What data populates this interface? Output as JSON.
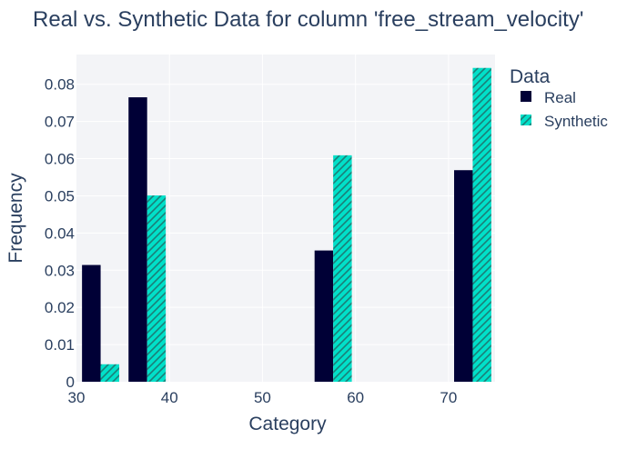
{
  "chart_data": {
    "type": "bar",
    "title": "Real vs. Synthetic Data for column 'free_stream_velocity'",
    "xlabel": "Category",
    "ylabel": "Frequency",
    "xlim": [
      30,
      75
    ],
    "ylim": [
      0,
      0.088
    ],
    "xticks": [
      30,
      40,
      50,
      60,
      70
    ],
    "yticks": [
      0,
      0.01,
      0.02,
      0.03,
      0.04,
      0.05,
      0.06,
      0.07,
      0.08
    ],
    "bar_width": 2,
    "grid": true,
    "legend": {
      "title": "Data",
      "placement": "right"
    },
    "series": [
      {
        "name": "Real",
        "color": "#000036",
        "pattern": "solid",
        "x": [
          31.6,
          36.6,
          56.6,
          71.6
        ],
        "values": [
          0.0314,
          0.0765,
          0.0353,
          0.0569
        ]
      },
      {
        "name": "Synthetic",
        "color": "#01e0c9",
        "pattern": "diagonal-hatch",
        "x": [
          33.6,
          38.6,
          58.6,
          73.6
        ],
        "values": [
          0.0047,
          0.0501,
          0.0609,
          0.0844
        ]
      }
    ]
  }
}
